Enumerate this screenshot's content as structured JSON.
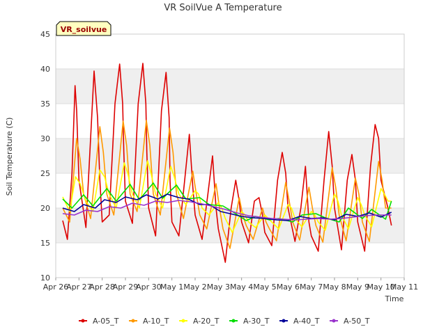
{
  "chart_data": {
    "type": "line",
    "title": "VR SoilVue A Temperature",
    "xlabel": "Time",
    "ylabel": "Soil Temperature (C)",
    "ylim": [
      10,
      45
    ],
    "yticks": [
      10,
      15,
      20,
      25,
      30,
      35,
      40,
      45
    ],
    "xlim": [
      26,
      41
    ],
    "xticks": [
      {
        "x": 26,
        "label": "Apr 26"
      },
      {
        "x": 27,
        "label": "Apr 27"
      },
      {
        "x": 28,
        "label": "Apr 28"
      },
      {
        "x": 29,
        "label": "Apr 29"
      },
      {
        "x": 30,
        "label": "Apr 30"
      },
      {
        "x": 31,
        "label": "May 1"
      },
      {
        "x": 32,
        "label": "May 2"
      },
      {
        "x": 33,
        "label": "May 3"
      },
      {
        "x": 34,
        "label": "May 4"
      },
      {
        "x": 35,
        "label": "May 5"
      },
      {
        "x": 36,
        "label": "May 6"
      },
      {
        "x": 37,
        "label": "May 7"
      },
      {
        "x": 38,
        "label": "May 8"
      },
      {
        "x": 39,
        "label": "May 9"
      },
      {
        "x": 40,
        "label": "May 10"
      },
      {
        "x": 41,
        "label": "May 11"
      }
    ],
    "station_label": "VR_soilvue",
    "legend_position": "bottom",
    "grid": "horizontal-bands",
    "series": [
      {
        "name": "A-05_T",
        "color": "#dd0000",
        "x": [
          26.3,
          26.5,
          26.7,
          26.83,
          26.9,
          27.0,
          27.3,
          27.5,
          27.65,
          27.8,
          27.9,
          28.0,
          28.3,
          28.55,
          28.75,
          28.88,
          28.93,
          29.0,
          29.3,
          29.55,
          29.75,
          29.88,
          29.92,
          30.0,
          30.3,
          30.55,
          30.75,
          30.88,
          30.92,
          31.0,
          31.3,
          31.55,
          31.75,
          31.9,
          32.0,
          32.3,
          32.55,
          32.75,
          32.9,
          33.0,
          33.3,
          33.55,
          33.75,
          33.9,
          34.0,
          34.3,
          34.55,
          34.75,
          34.9,
          35.0,
          35.3,
          35.55,
          35.75,
          35.9,
          36.0,
          36.3,
          36.55,
          36.75,
          36.9,
          37.0,
          37.3,
          37.55,
          37.75,
          37.9,
          38.0,
          38.3,
          38.55,
          38.75,
          38.9,
          39.0,
          39.3,
          39.55,
          39.75,
          39.9,
          40.0,
          40.3,
          40.45
        ],
        "values": [
          18.2,
          15.5,
          25,
          37.6,
          34,
          24,
          17.2,
          30,
          39.7,
          33,
          24,
          18,
          19,
          35,
          40.7,
          35,
          28,
          21,
          17.8,
          35,
          40.8,
          35,
          28,
          20,
          16,
          34,
          39.5,
          33,
          24,
          18,
          16,
          24,
          30.6,
          23,
          19,
          15.5,
          22,
          27.5,
          20,
          17,
          12.2,
          20,
          24,
          21,
          18,
          15,
          21,
          21.5,
          19,
          16.5,
          14.6,
          24,
          28,
          25,
          20,
          15.2,
          20,
          26,
          18,
          16,
          13.8,
          24,
          31,
          26,
          20,
          14,
          24,
          27.7,
          24,
          18,
          13.8,
          26,
          32,
          30,
          24,
          20,
          17.5
        ]
      },
      {
        "name": "A-10_T",
        "color": "#ff9900",
        "x": [
          26.3,
          26.6,
          26.9,
          27.05,
          27.2,
          27.5,
          27.9,
          28.05,
          28.2,
          28.5,
          28.9,
          29.05,
          29.2,
          29.5,
          29.9,
          30.05,
          30.2,
          30.5,
          30.9,
          31.05,
          31.2,
          31.5,
          31.9,
          32.05,
          32.2,
          32.5,
          32.9,
          33.05,
          33.2,
          33.5,
          33.9,
          34.05,
          34.2,
          34.5,
          34.9,
          35.05,
          35.2,
          35.5,
          35.9,
          36.05,
          36.2,
          36.5,
          36.9,
          37.05,
          37.2,
          37.5,
          37.9,
          38.05,
          38.2,
          38.5,
          38.9,
          39.05,
          39.2,
          39.5,
          39.9,
          40.05,
          40.2,
          40.45
        ],
        "values": [
          20,
          18,
          30,
          27,
          22,
          18.5,
          31.7,
          28,
          22,
          19,
          32.5,
          29,
          22,
          19.5,
          32.6,
          29,
          22,
          19,
          31.5,
          28,
          22,
          18.5,
          25.3,
          22,
          19,
          17,
          23.5,
          20,
          17,
          14.2,
          21.5,
          19,
          17.5,
          15.5,
          20,
          18,
          17,
          15.3,
          23.7,
          21,
          18,
          15.4,
          23,
          20,
          17.5,
          15.1,
          25.8,
          23,
          19,
          15.3,
          24.3,
          22,
          18,
          15.2,
          26.7,
          24,
          20,
          20
        ]
      },
      {
        "name": "A-20_T",
        "color": "#ffff00",
        "x": [
          26.3,
          26.6,
          26.85,
          27.05,
          27.3,
          27.6,
          27.9,
          28.1,
          28.3,
          28.6,
          28.95,
          29.1,
          29.3,
          29.6,
          29.95,
          30.1,
          30.3,
          30.6,
          30.95,
          31.1,
          31.3,
          31.6,
          32.0,
          32.15,
          32.3,
          32.6,
          33.0,
          33.15,
          33.3,
          33.6,
          34.0,
          34.15,
          34.3,
          34.6,
          35.0,
          35.15,
          35.3,
          35.6,
          36.0,
          36.15,
          36.3,
          36.6,
          37.0,
          37.15,
          37.3,
          37.6,
          38.0,
          38.15,
          38.3,
          38.6,
          39.0,
          39.15,
          39.3,
          39.6,
          40.0,
          40.15,
          40.3,
          40.45
        ],
        "values": [
          21.6,
          19.5,
          24.5,
          23.5,
          21,
          19.5,
          25.5,
          24.5,
          22,
          20,
          26.5,
          25,
          22,
          20,
          26.8,
          25,
          22,
          20,
          26,
          24.5,
          22,
          20.5,
          22.5,
          22,
          20,
          19,
          20.8,
          20,
          18.5,
          16.5,
          19.5,
          19,
          18,
          17.2,
          19,
          18.5,
          18,
          17,
          20.5,
          20,
          18.5,
          17.3,
          19.5,
          19,
          18,
          16.8,
          22,
          21,
          19,
          17,
          21.5,
          20.5,
          19,
          17.3,
          22.8,
          22,
          21,
          21
        ]
      },
      {
        "name": "A-30_T",
        "color": "#00dd00",
        "x": [
          26.3,
          26.7,
          27.2,
          27.6,
          28.2,
          28.6,
          29.2,
          29.6,
          30.2,
          30.6,
          31.2,
          31.6,
          32.2,
          32.6,
          33.2,
          33.6,
          34.2,
          34.6,
          35.2,
          35.6,
          36.2,
          36.6,
          37.2,
          37.6,
          38.2,
          38.6,
          39.2,
          39.6,
          40.2,
          40.45
        ],
        "values": [
          21.3,
          20,
          21.9,
          20.3,
          22.8,
          21,
          23.4,
          21.2,
          23.6,
          21.4,
          23.3,
          21.3,
          21.5,
          20.5,
          20.3,
          19.5,
          18.2,
          18.8,
          18.3,
          18.5,
          18,
          19,
          19.2,
          18.6,
          18,
          20,
          18.5,
          19.8,
          18.4,
          21
        ]
      },
      {
        "name": "A-40_T",
        "color": "#000099",
        "x": [
          26.3,
          26.8,
          27.2,
          27.7,
          28.1,
          28.6,
          29.0,
          29.5,
          29.9,
          30.4,
          30.8,
          31.3,
          31.7,
          32.2,
          32.6,
          33.1,
          33.5,
          34.0,
          34.5,
          35.0,
          35.5,
          36.0,
          36.5,
          37.0,
          37.5,
          38.0,
          38.5,
          39.0,
          39.5,
          40.0,
          40.45
        ],
        "values": [
          20,
          19.5,
          20.5,
          20,
          21.2,
          20.8,
          21.6,
          21.2,
          21.9,
          21.3,
          22,
          21.5,
          21.3,
          20.5,
          20.5,
          19.5,
          19.2,
          18.8,
          18.6,
          18.5,
          18.3,
          18.2,
          18.8,
          18.5,
          18.6,
          18.3,
          19.1,
          18.8,
          19.3,
          18.7,
          19.4
        ]
      },
      {
        "name": "A-50_T",
        "color": "#9933cc",
        "x": [
          26.3,
          26.8,
          27.3,
          27.8,
          28.3,
          28.8,
          29.3,
          29.8,
          30.3,
          30.8,
          31.3,
          31.8,
          32.3,
          32.8,
          33.3,
          33.8,
          34.3,
          34.8,
          35.3,
          35.8,
          36.3,
          36.8,
          37.3,
          37.8,
          38.3,
          38.8,
          39.3,
          39.8,
          40.45
        ],
        "values": [
          19.2,
          19,
          19.7,
          19.5,
          20.2,
          20,
          20.7,
          20.4,
          21,
          20.8,
          21.1,
          20.9,
          20.6,
          20.2,
          19.8,
          19.3,
          18.9,
          18.7,
          18.5,
          18.4,
          18.3,
          18.4,
          18.5,
          18.4,
          18.5,
          18.7,
          18.9,
          19,
          19
        ]
      }
    ]
  }
}
